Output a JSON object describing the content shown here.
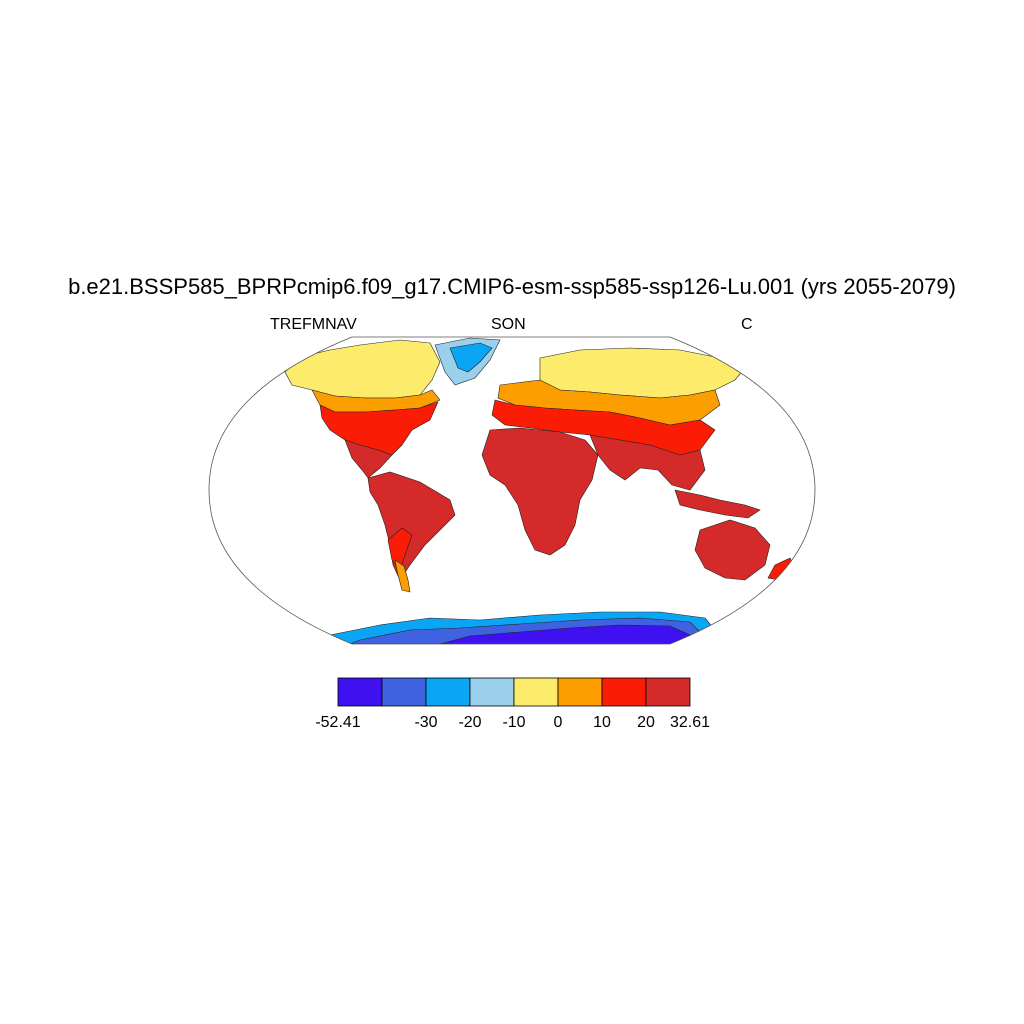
{
  "title": "b.e21.BSSP585_BPRPcmip6.f09_g17.CMIP6-esm-ssp585-ssp126-Lu.001 (yrs 2055-2079)",
  "left_label": "TREFMNAV",
  "center_label": "SON",
  "right_label": "C",
  "colorbar": {
    "colors": [
      "#3f10f0",
      "#3f63e0",
      "#0aa6f5",
      "#9bd0ec",
      "#fdec6c",
      "#fc9e00",
      "#fb1c06",
      "#d42a2a"
    ],
    "labels": [
      "-52.41",
      "-30",
      "-20",
      "-10",
      "0",
      "10",
      "20",
      "32.61"
    ]
  },
  "regions": {
    "tropics": "#d42a2a",
    "warm_temperate": "#fb1c06",
    "temperate": "#fc9e00",
    "cold": "#fdec6c",
    "greenland_edge": "#9bd0ec",
    "greenland_core": "#0aa6f5",
    "antarctica_edge": "#0aa6f5",
    "antarctica_mid": "#3f63e0",
    "antarctica_core": "#3f10f0"
  }
}
